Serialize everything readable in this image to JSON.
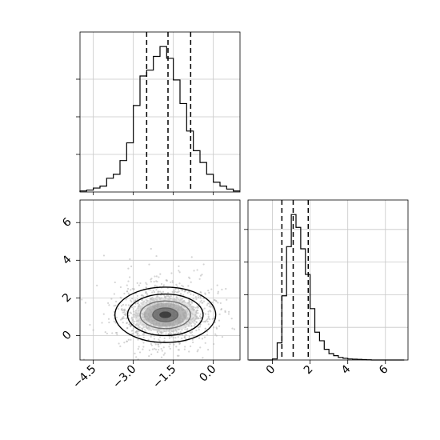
{
  "chart_data": [
    {
      "panel": "top-left",
      "type": "histogram",
      "variable": "x",
      "bin_edges": [
        -5.0,
        -4.75,
        -4.5,
        -4.25,
        -4.0,
        -3.75,
        -3.5,
        -3.25,
        -3.0,
        -2.75,
        -2.5,
        -2.25,
        -2.0,
        -1.75,
        -1.5,
        -1.25,
        -1.0,
        -0.75,
        -0.5,
        -0.25,
        0.0,
        0.25,
        0.5,
        0.75,
        1.0
      ],
      "counts": [
        0.5,
        1,
        2,
        3,
        7,
        9,
        16,
        25,
        44,
        59,
        62,
        69,
        74,
        68,
        57,
        45,
        31,
        21,
        15,
        9,
        5,
        3,
        1.5,
        0.5
      ],
      "quantiles": [
        -2.5,
        -1.7,
        -0.85
      ],
      "xlim": [
        -5.0,
        1.0
      ],
      "grid": true
    },
    {
      "panel": "bottom-left",
      "type": "scatter",
      "variables": [
        "x",
        "y"
      ],
      "center": [
        -1.8,
        1.1
      ],
      "std": [
        0.9,
        0.7
      ],
      "contour_levels": [
        0.5,
        1.0,
        1.5,
        2.0
      ],
      "xlim": [
        -5.0,
        1.0
      ],
      "ylim": [
        -1.3,
        7.2
      ],
      "xticks": [
        "−4.5",
        "−3.0",
        "−1.5",
        "0.0"
      ],
      "yticks": [
        "0",
        "2",
        "4",
        "6"
      ],
      "grid": true
    },
    {
      "panel": "bottom-right",
      "type": "histogram",
      "variable": "y",
      "bin_edges": [
        -1.25,
        -1.0,
        -0.75,
        -0.5,
        -0.25,
        0.0,
        0.25,
        0.5,
        0.75,
        1.0,
        1.25,
        1.5,
        1.75,
        2.0,
        2.25,
        2.5,
        2.75,
        3.0,
        3.25,
        3.5,
        3.75,
        4.0,
        4.25,
        4.5,
        4.75,
        5.0,
        5.25,
        5.5,
        5.75,
        6.0,
        6.25,
        6.5,
        6.75,
        7.0
      ],
      "counts": [
        0,
        0,
        0,
        0,
        0,
        0.5,
        8,
        30,
        53,
        68,
        62,
        52,
        40,
        24,
        13,
        9,
        5,
        3,
        2,
        1.2,
        0.8,
        0.5,
        0.4,
        0.3,
        0.2,
        0.1,
        0,
        0,
        0,
        0,
        0,
        0,
        0
      ],
      "quantiles": [
        0.5,
        1.1,
        1.9
      ],
      "xlim": [
        -1.3,
        7.2
      ],
      "xticks": [
        "0",
        "2",
        "4",
        "6"
      ],
      "grid": true
    }
  ]
}
